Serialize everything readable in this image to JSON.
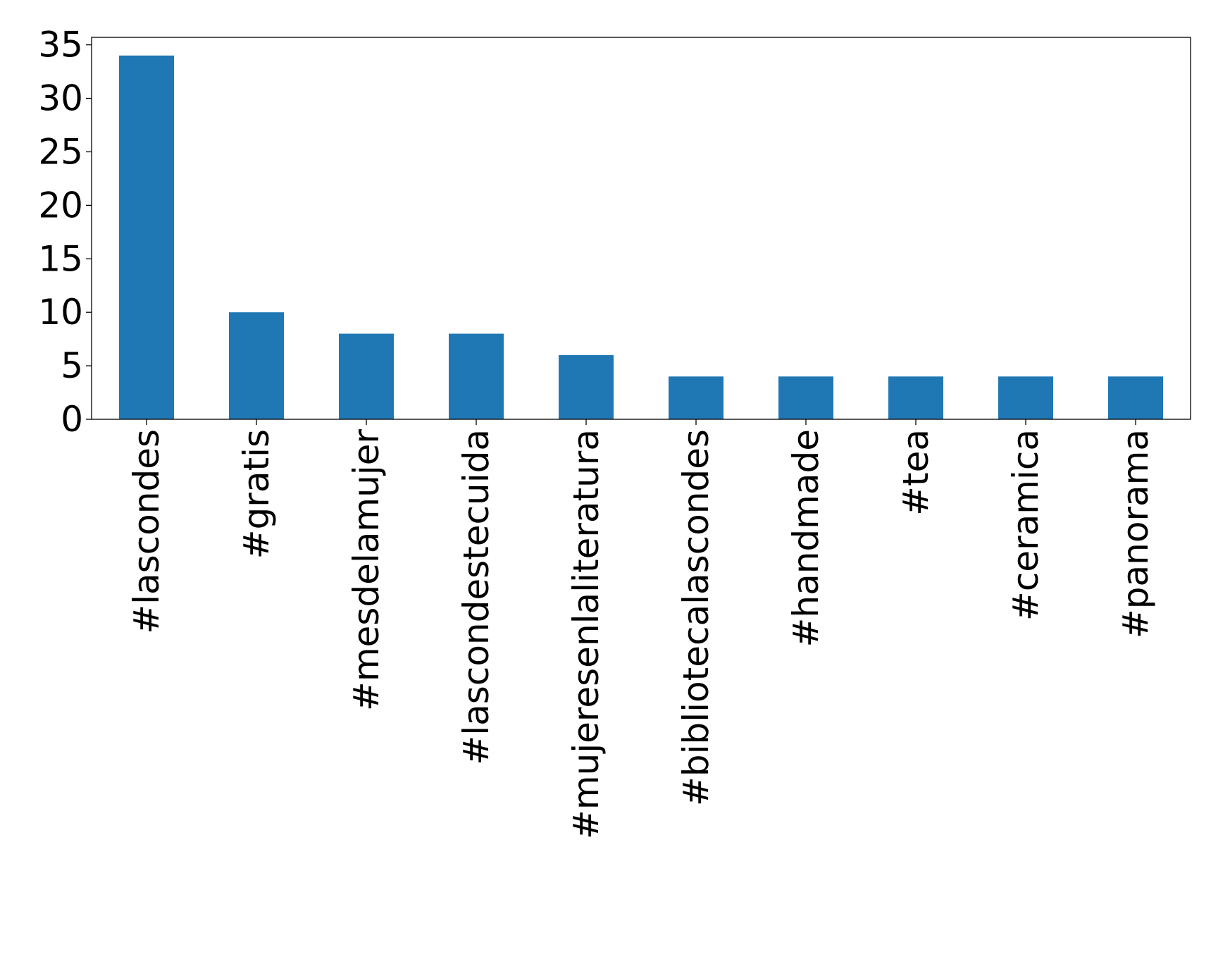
{
  "chart_data": {
    "type": "bar",
    "title": "",
    "xlabel": "",
    "ylabel": "",
    "categories": [
      "#lascondes",
      "#gratis",
      "#mesdelamujer",
      "#lascondestecuida",
      "#mujeresenlaliteratura",
      "#bibliotecalascondes",
      "#handmade",
      "#tea",
      "#ceramica",
      "#panorama"
    ],
    "values": [
      34,
      10,
      8,
      8,
      6,
      4,
      4,
      4,
      4,
      4
    ],
    "ylim": [
      0,
      35.7
    ],
    "yticks": [
      0,
      5,
      10,
      15,
      20,
      25,
      30,
      35
    ],
    "bar_color": "#1f77b4",
    "grid": false,
    "legend": "none"
  }
}
